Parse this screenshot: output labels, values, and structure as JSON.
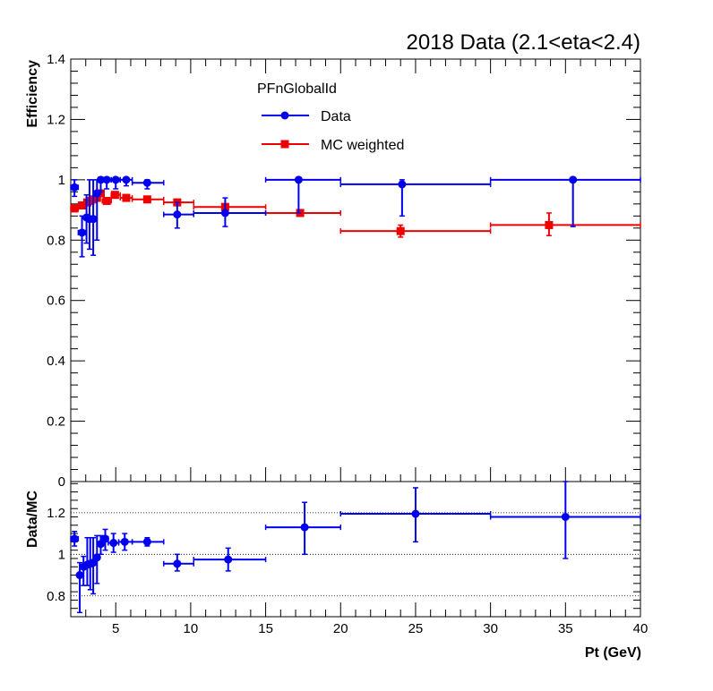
{
  "chart_data": {
    "type": "scatter",
    "title": "2018 Data (2.1<eta<2.4)",
    "legend": {
      "header": "PFnGlobalId",
      "placement": "top-center",
      "entries": [
        "Data",
        "MC weighted"
      ]
    },
    "colors": {
      "data": "#0000ee",
      "mc": "#ee0000",
      "ratio": "#0000ee"
    },
    "main": {
      "ylabel": "Efficiency",
      "ylim": [
        0,
        1.4
      ],
      "yticks": [
        0,
        0.2,
        0.4,
        0.6,
        0.8,
        1,
        1.2,
        1.4
      ],
      "ytick_labels": [
        "0",
        "0.2",
        "0.4",
        "0.6",
        "0.8",
        "1",
        "1.2",
        "1.4"
      ],
      "series": [
        {
          "name": "Data",
          "marker": "circle",
          "points": [
            {
              "x": 2.25,
              "xlo": 2.0,
              "xhi": 2.5,
              "y": 0.975,
              "ylo": 0.945,
              "yhi": 1.0
            },
            {
              "x": 2.75,
              "xlo": 2.5,
              "xhi": 3.0,
              "y": 0.825,
              "ylo": 0.745,
              "yhi": 0.88
            },
            {
              "x": 3.05,
              "xlo": 3.0,
              "xhi": 3.2,
              "y": 0.875,
              "ylo": 0.79,
              "yhi": 0.95
            },
            {
              "x": 3.25,
              "xlo": 3.2,
              "xhi": 3.4,
              "y": 0.87,
              "ylo": 0.77,
              "yhi": 1.0
            },
            {
              "x": 3.5,
              "xlo": 3.4,
              "xhi": 3.6,
              "y": 0.87,
              "ylo": 0.75,
              "yhi": 1.0
            },
            {
              "x": 3.75,
              "xlo": 3.6,
              "xhi": 3.9,
              "y": 0.955,
              "ylo": 0.8,
              "yhi": 1.0
            },
            {
              "x": 4.0,
              "xlo": 3.9,
              "xhi": 4.1,
              "y": 1.0,
              "ylo": 0.96,
              "yhi": 1.0
            },
            {
              "x": 4.4,
              "xlo": 4.1,
              "xhi": 4.7,
              "y": 1.0,
              "ylo": 0.97,
              "yhi": 1.0
            },
            {
              "x": 5.0,
              "xlo": 4.7,
              "xhi": 5.3,
              "y": 1.0,
              "ylo": 0.97,
              "yhi": 1.0
            },
            {
              "x": 5.7,
              "xlo": 5.3,
              "xhi": 6.1,
              "y": 1.0,
              "ylo": 0.98,
              "yhi": 1.0
            },
            {
              "x": 7.1,
              "xlo": 6.1,
              "xhi": 8.2,
              "y": 0.99,
              "ylo": 0.97,
              "yhi": 1.0
            },
            {
              "x": 9.1,
              "xlo": 8.2,
              "xhi": 10.2,
              "y": 0.885,
              "ylo": 0.84,
              "yhi": 0.925
            },
            {
              "x": 12.3,
              "xlo": 10.2,
              "xhi": 15.0,
              "y": 0.89,
              "ylo": 0.845,
              "yhi": 0.94
            },
            {
              "x": 17.2,
              "xlo": 15.0,
              "xhi": 20.0,
              "y": 1.0,
              "ylo": 0.89,
              "yhi": 1.0
            },
            {
              "x": 24.1,
              "xlo": 20.0,
              "xhi": 30.0,
              "y": 0.985,
              "ylo": 0.88,
              "yhi": 1.0
            },
            {
              "x": 35.5,
              "xlo": 30.0,
              "xhi": 40.0,
              "y": 1.0,
              "ylo": 0.845,
              "yhi": 1.0
            }
          ]
        },
        {
          "name": "MC weighted",
          "marker": "square",
          "points": [
            {
              "x": 2.25,
              "xlo": 2.0,
              "xhi": 2.5,
              "y": 0.905,
              "ylo": 0.895,
              "yhi": 0.915
            },
            {
              "x": 2.75,
              "xlo": 2.5,
              "xhi": 3.0,
              "y": 0.915,
              "ylo": 0.905,
              "yhi": 0.925
            },
            {
              "x": 3.1,
              "xlo": 3.0,
              "xhi": 3.2,
              "y": 0.925,
              "ylo": 0.915,
              "yhi": 0.935
            },
            {
              "x": 3.3,
              "xlo": 3.2,
              "xhi": 3.4,
              "y": 0.93,
              "ylo": 0.92,
              "yhi": 0.94
            },
            {
              "x": 3.5,
              "xlo": 3.4,
              "xhi": 3.6,
              "y": 0.935,
              "ylo": 0.925,
              "yhi": 0.945
            },
            {
              "x": 3.75,
              "xlo": 3.6,
              "xhi": 3.9,
              "y": 0.94,
              "ylo": 0.93,
              "yhi": 0.95
            },
            {
              "x": 4.0,
              "xlo": 3.9,
              "xhi": 4.1,
              "y": 0.955,
              "ylo": 0.945,
              "yhi": 0.965
            },
            {
              "x": 4.4,
              "xlo": 4.1,
              "xhi": 4.7,
              "y": 0.93,
              "ylo": 0.92,
              "yhi": 0.94
            },
            {
              "x": 4.95,
              "xlo": 4.7,
              "xhi": 5.3,
              "y": 0.95,
              "ylo": 0.94,
              "yhi": 0.96
            },
            {
              "x": 5.7,
              "xlo": 5.3,
              "xhi": 6.1,
              "y": 0.94,
              "ylo": 0.93,
              "yhi": 0.95
            },
            {
              "x": 7.1,
              "xlo": 6.1,
              "xhi": 8.2,
              "y": 0.935,
              "ylo": 0.925,
              "yhi": 0.945
            },
            {
              "x": 9.1,
              "xlo": 8.2,
              "xhi": 10.2,
              "y": 0.925,
              "ylo": 0.915,
              "yhi": 0.935
            },
            {
              "x": 12.3,
              "xlo": 10.2,
              "xhi": 15.0,
              "y": 0.91,
              "ylo": 0.9,
              "yhi": 0.92
            },
            {
              "x": 17.3,
              "xlo": 15.0,
              "xhi": 20.0,
              "y": 0.89,
              "ylo": 0.88,
              "yhi": 0.9
            },
            {
              "x": 24.0,
              "xlo": 20.0,
              "xhi": 30.0,
              "y": 0.83,
              "ylo": 0.81,
              "yhi": 0.85
            },
            {
              "x": 33.9,
              "xlo": 30.0,
              "xhi": 40.0,
              "y": 0.85,
              "ylo": 0.815,
              "yhi": 0.89
            }
          ]
        }
      ]
    },
    "ratio": {
      "ylabel": "Data/MC",
      "ylim": [
        0.7,
        1.35
      ],
      "yticks": [
        0.8,
        1,
        1.2
      ],
      "ytick_labels": [
        "0.8",
        "1",
        "1.2"
      ],
      "gridlines": [
        0.8,
        1.0,
        1.2
      ],
      "xlabel": "Pt (GeV)",
      "xlim": [
        2,
        40
      ],
      "xticks": [
        5,
        10,
        15,
        20,
        25,
        30,
        35,
        40
      ],
      "xtick_labels": [
        "5",
        "10",
        "15",
        "20",
        "25",
        "30",
        "35",
        "40"
      ],
      "points": [
        {
          "x": 2.25,
          "xlo": 2.0,
          "xhi": 2.5,
          "y": 1.075,
          "ylo": 1.04,
          "yhi": 1.11
        },
        {
          "x": 2.6,
          "xlo": 2.5,
          "xhi": 2.7,
          "y": 0.9,
          "ylo": 0.72,
          "yhi": 0.96
        },
        {
          "x": 2.85,
          "xlo": 2.7,
          "xhi": 3.0,
          "y": 0.94,
          "ylo": 0.85,
          "yhi": 0.99
        },
        {
          "x": 3.1,
          "xlo": 3.0,
          "xhi": 3.2,
          "y": 0.95,
          "ylo": 0.85,
          "yhi": 1.08
        },
        {
          "x": 3.3,
          "xlo": 3.2,
          "xhi": 3.4,
          "y": 0.955,
          "ylo": 0.83,
          "yhi": 1.08
        },
        {
          "x": 3.5,
          "xlo": 3.4,
          "xhi": 3.6,
          "y": 0.96,
          "ylo": 0.81,
          "yhi": 1.08
        },
        {
          "x": 3.75,
          "xlo": 3.6,
          "xhi": 3.9,
          "y": 0.985,
          "ylo": 0.86,
          "yhi": 1.09
        },
        {
          "x": 4.0,
          "xlo": 3.9,
          "xhi": 4.1,
          "y": 1.05,
          "ylo": 1.0,
          "yhi": 1.09
        },
        {
          "x": 4.3,
          "xlo": 4.1,
          "xhi": 4.5,
          "y": 1.075,
          "ylo": 1.02,
          "yhi": 1.12
        },
        {
          "x": 4.85,
          "xlo": 4.5,
          "xhi": 5.2,
          "y": 1.055,
          "ylo": 1.01,
          "yhi": 1.1
        },
        {
          "x": 5.6,
          "xlo": 5.2,
          "xhi": 6.1,
          "y": 1.06,
          "ylo": 1.02,
          "yhi": 1.1
        },
        {
          "x": 7.1,
          "xlo": 6.1,
          "xhi": 8.2,
          "y": 1.06,
          "ylo": 1.04,
          "yhi": 1.08
        },
        {
          "x": 9.1,
          "xlo": 8.2,
          "xhi": 10.2,
          "y": 0.955,
          "ylo": 0.92,
          "yhi": 1.0
        },
        {
          "x": 12.5,
          "xlo": 10.2,
          "xhi": 15.0,
          "y": 0.975,
          "ylo": 0.92,
          "yhi": 1.03
        },
        {
          "x": 17.6,
          "xlo": 15.0,
          "xhi": 20.0,
          "y": 1.13,
          "ylo": 1.0,
          "yhi": 1.25
        },
        {
          "x": 25.0,
          "xlo": 20.0,
          "xhi": 30.0,
          "y": 1.195,
          "ylo": 1.06,
          "yhi": 1.32
        },
        {
          "x": 35.0,
          "xlo": 30.0,
          "xhi": 40.0,
          "y": 1.18,
          "ylo": 0.98,
          "yhi": 1.35
        }
      ]
    }
  }
}
